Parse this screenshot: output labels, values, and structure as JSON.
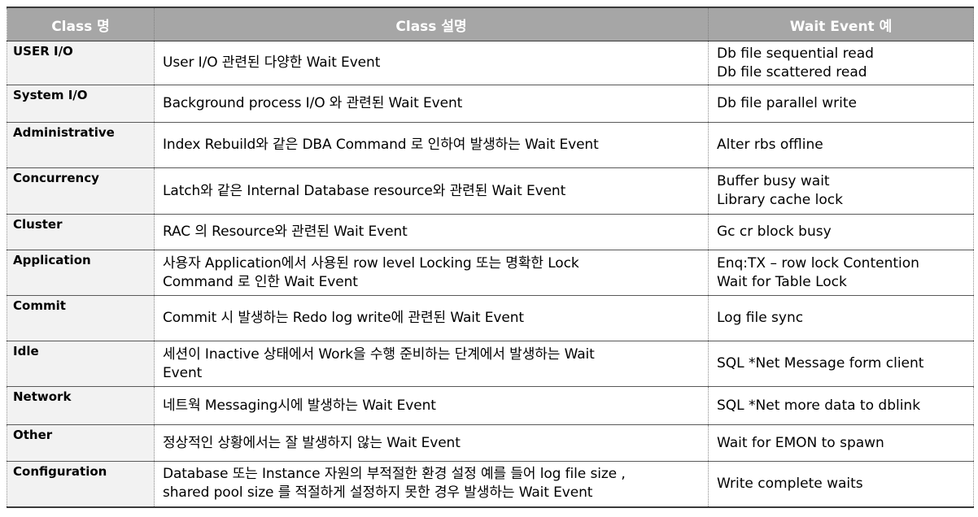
{
  "header": {
    "col1": "Class 명",
    "col2": "Class 설명",
    "col3": "Wait Event 예"
  },
  "rows": [
    {
      "name": "USER I/O",
      "description": "User I/O 관련된 다양한 Wait Event",
      "example": "Db file sequential read\nDb file scattered read"
    },
    {
      "name": "System I/O",
      "description": "Background process I/O 와 관련된 Wait Event",
      "example": "Db file parallel write"
    },
    {
      "name": "Administrative",
      "description": "Index Rebuild와 같은 DBA Command 로 인하여 발생하는 Wait Event",
      "example": "Alter rbs offline"
    },
    {
      "name": "Concurrency",
      "description": "Latch와 같은 Internal Database resource와 관련된 Wait Event",
      "example": "Buffer busy wait\nLibrary cache lock"
    },
    {
      "name": "Cluster",
      "description": "RAC 의 Resource와 관련된 Wait Event",
      "example": "Gc cr block busy"
    },
    {
      "name": "Application",
      "description": "사용자 Application에서 사용된 row level Locking 또는 명확한 Lock\nCommand 로 인한 Wait Event",
      "example": "Enq:TX – row lock Contention\nWait for Table Lock"
    },
    {
      "name": "Commit",
      "description": "Commit 시 발생하는 Redo log write에 관련된 Wait Event",
      "example": "Log file sync"
    },
    {
      "name": "Idle",
      "description": "세션이 Inactive 상태에서 Work을 수행 준비하는 단계에서 발생하는 Wait\nEvent",
      "example": "SQL *Net Message form client"
    },
    {
      "name": "Network",
      "description": "네트웍 Messaging시에 발생하는 Wait Event",
      "example": "SQL *Net more data to dblink"
    },
    {
      "name": "Other",
      "description": "정상적인 상황에서는 잘 발생하지 않는 Wait Event",
      "example": "Wait for EMON to spawn"
    },
    {
      "name": "Configuration",
      "description": "Database 또는 Instance 자원의 부적절한 환경 설정 예를 들어 log file size ,\nshared pool size 를 적절하게 설정하지 못한 경우 발생하는 Wait Event",
      "example": "Write complete waits"
    }
  ]
}
